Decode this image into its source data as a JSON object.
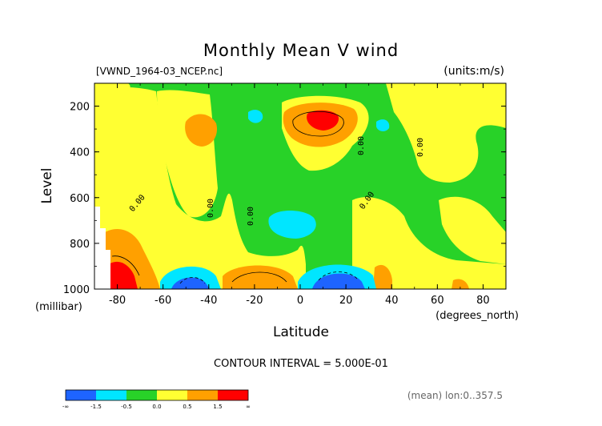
{
  "chart_data": {
    "type": "contour",
    "title": "Monthly Mean V wind",
    "file_label": "[VWND_1964-03_NCEP.nc]",
    "units_label": "(units:m/s)",
    "xlabel": "Latitude",
    "x_units": "(degrees_north)",
    "ylabel": "Level",
    "y_units": "(millibar)",
    "xlim": [
      -90,
      90
    ],
    "ylim": [
      1000,
      100
    ],
    "x_ticks": [
      -80,
      -60,
      -40,
      -20,
      0,
      20,
      40,
      60,
      80
    ],
    "y_ticks": [
      200,
      400,
      600,
      800,
      1000
    ],
    "contour_interval_text": "CONTOUR INTERVAL = 5.000E-01",
    "contour_labels": [
      "0.00",
      "0.00",
      "0.00",
      "0.00",
      "0.00",
      "0.00"
    ],
    "footer_text": "(mean) lon:0..357.5",
    "colorbar": {
      "labels": [
        "-∞",
        "-1.5",
        "-0.5",
        "0.0",
        "0.5",
        "1.5",
        "∞"
      ],
      "colors": [
        "#1e64ff",
        "#00e6ff",
        "#28d228",
        "#ffff32",
        "#ffa000",
        "#ff0000"
      ]
    },
    "colors": {
      "very_negative": "#1e64ff",
      "negative": "#00e6ff",
      "near_zero_neg": "#28d228",
      "near_zero_pos": "#ffff32",
      "positive": "#ffa000",
      "very_positive": "#ff0000"
    }
  }
}
